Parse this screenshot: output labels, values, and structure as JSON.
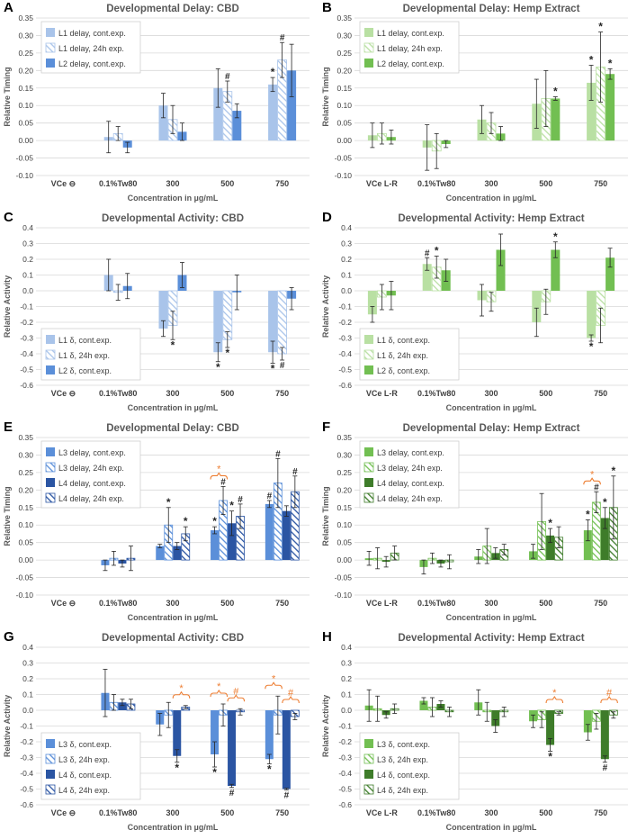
{
  "colors": {
    "cbd_a": "#a9c4ea",
    "cbd_b": "#5b8fd9",
    "cbd_c": "#2b55a3",
    "hemp_a": "#b9e0a3",
    "hemp_b": "#72bf52",
    "hemp_c": "#3e7c2a",
    "sig": "#ed7d31",
    "grid": "#d9d9d9",
    "text": "#595959",
    "title": "#595959"
  },
  "chart_data": [
    {
      "panel": "A",
      "type": "bar",
      "title": "Developmental Delay: CBD",
      "xlabel": "Concentration in µg/mL",
      "ylabel": "Relative Timing",
      "ylim": [
        -0.1,
        0.35
      ],
      "yticks": [
        -0.1,
        -0.05,
        0,
        0.05,
        0.1,
        0.15,
        0.2,
        0.25,
        0.3,
        0.35
      ],
      "categories": [
        "VCe ⊖",
        "0.1%Tw80",
        "300",
        "500",
        "750"
      ],
      "legend_position": "top-left",
      "series": [
        {
          "name": "L1 delay, cont.exp.",
          "color": "#a9c4ea",
          "hatch": false,
          "values": [
            null,
            0.01,
            0.1,
            0.15,
            0.16
          ],
          "err": [
            null,
            0.045,
            0.035,
            0.055,
            0.02
          ],
          "marks": [
            null,
            null,
            null,
            null,
            "*"
          ]
        },
        {
          "name": "L1 delay, 24h exp.",
          "color": "#a9c4ea",
          "hatch": true,
          "values": [
            null,
            0.02,
            0.06,
            0.14,
            0.23
          ],
          "err": [
            null,
            0.02,
            0.04,
            0.03,
            0.05
          ],
          "marks": [
            null,
            null,
            null,
            "#",
            "#"
          ]
        },
        {
          "name": "L2 delay, cont.exp.",
          "color": "#5b8fd9",
          "hatch": false,
          "values": [
            null,
            -0.02,
            0.025,
            0.085,
            0.2
          ],
          "err": [
            null,
            0.015,
            0.025,
            0.02,
            0.075
          ],
          "marks": [
            null,
            null,
            null,
            null,
            null
          ]
        }
      ],
      "brackets": []
    },
    {
      "panel": "B",
      "type": "bar",
      "title": "Developmental Delay: Hemp Extract",
      "xlabel": "Concentration in µg/mL",
      "ylabel": "Relative Timing",
      "ylim": [
        -0.1,
        0.35
      ],
      "yticks": [
        -0.1,
        -0.05,
        0,
        0.05,
        0.1,
        0.15,
        0.2,
        0.25,
        0.3,
        0.35
      ],
      "categories": [
        "VCe L-R",
        "0.1%Tw80",
        "300",
        "500",
        "750"
      ],
      "legend_position": "top-left",
      "series": [
        {
          "name": "L1 delay, cont.exp.",
          "color": "#b9e0a3",
          "hatch": false,
          "values": [
            0.015,
            -0.02,
            0.06,
            0.105,
            0.165
          ],
          "err": [
            0.035,
            0.065,
            0.04,
            0.07,
            0.05
          ],
          "marks": [
            null,
            null,
            null,
            null,
            "*"
          ]
        },
        {
          "name": "L1 delay, 24h exp.",
          "color": "#b9e0a3",
          "hatch": true,
          "values": [
            0.02,
            -0.03,
            0.05,
            0.12,
            0.21
          ],
          "err": [
            0.03,
            0.05,
            0.03,
            0.08,
            0.1
          ],
          "marks": [
            null,
            null,
            null,
            null,
            "*"
          ]
        },
        {
          "name": "L2 delay, cont.exp.",
          "color": "#72bf52",
          "hatch": false,
          "values": [
            0.01,
            -0.01,
            0.02,
            0.12,
            0.19
          ],
          "err": [
            0.02,
            0.01,
            0.02,
            0.005,
            0.015
          ],
          "marks": [
            null,
            null,
            null,
            "*",
            "*"
          ]
        }
      ],
      "brackets": []
    },
    {
      "panel": "C",
      "type": "bar",
      "title": "Developmental Activity: CBD",
      "xlabel": "Concentration in µg/mL",
      "ylabel": "Relative Activity",
      "ylim": [
        -0.6,
        0.4
      ],
      "yticks": [
        -0.6,
        -0.5,
        -0.4,
        -0.3,
        -0.2,
        -0.1,
        0,
        0.1,
        0.2,
        0.3,
        0.4
      ],
      "categories": [
        "VCe ⊖",
        "0.1%Tw80",
        "300",
        "500",
        "750"
      ],
      "legend_position": "bottom-left",
      "series": [
        {
          "name": "L1 δ, cont.exp.",
          "color": "#a9c4ea",
          "hatch": false,
          "values": [
            null,
            0.1,
            -0.24,
            -0.39,
            -0.39
          ],
          "err": [
            null,
            0.1,
            0.05,
            0.06,
            0.07
          ],
          "marks": [
            null,
            null,
            null,
            "*",
            "*"
          ]
        },
        {
          "name": "L1 δ, 24h exp.",
          "color": "#a9c4ea",
          "hatch": true,
          "values": [
            null,
            -0.01,
            -0.22,
            -0.31,
            -0.4
          ],
          "err": [
            null,
            0.05,
            0.09,
            0.05,
            0.04
          ],
          "marks": [
            null,
            null,
            "*",
            "*",
            "#"
          ]
        },
        {
          "name": "L2 δ, cont.exp.",
          "color": "#5b8fd9",
          "hatch": false,
          "values": [
            null,
            0.03,
            0.1,
            -0.01,
            -0.05
          ],
          "err": [
            null,
            0.08,
            0.08,
            0.11,
            0.07
          ],
          "marks": [
            null,
            null,
            null,
            null,
            null
          ]
        }
      ],
      "brackets": []
    },
    {
      "panel": "D",
      "type": "bar",
      "title": "Developmental Activity: Hemp Extract",
      "xlabel": "Concentration in µg/mL",
      "ylabel": "Relative Activity",
      "ylim": [
        -0.6,
        0.4
      ],
      "yticks": [
        -0.6,
        -0.5,
        -0.4,
        -0.3,
        -0.2,
        -0.1,
        0,
        0.1,
        0.2,
        0.3,
        0.4
      ],
      "categories": [
        "VCe L-R",
        "0.1%Tw80",
        "300",
        "500",
        "750"
      ],
      "legend_position": "bottom-left",
      "series": [
        {
          "name": "L1 δ, cont.exp.",
          "color": "#b9e0a3",
          "hatch": false,
          "values": [
            -0.15,
            0.17,
            -0.06,
            -0.2,
            -0.3
          ],
          "err": [
            0.05,
            0.04,
            0.1,
            0.09,
            0.02
          ],
          "marks": [
            null,
            "#",
            null,
            null,
            "*"
          ]
        },
        {
          "name": "L1 δ, 24h exp.",
          "color": "#b9e0a3",
          "hatch": true,
          "values": [
            -0.04,
            0.15,
            -0.07,
            -0.07,
            -0.22
          ],
          "err": [
            0.08,
            0.07,
            0.06,
            0.08,
            0.11
          ],
          "marks": [
            null,
            "*",
            null,
            null,
            null
          ]
        },
        {
          "name": "L2 δ, cont.exp.",
          "color": "#72bf52",
          "hatch": false,
          "values": [
            -0.03,
            0.13,
            0.26,
            0.26,
            0.21
          ],
          "err": [
            0.09,
            0.07,
            0.1,
            0.05,
            0.06
          ],
          "marks": [
            null,
            null,
            null,
            "*",
            null
          ]
        }
      ],
      "brackets": []
    },
    {
      "panel": "E",
      "type": "bar",
      "title": "Developmental Delay: CBD",
      "xlabel": "Concentration in µg/mL",
      "ylabel": "Relative Timing",
      "ylim": [
        -0.1,
        0.35
      ],
      "yticks": [
        -0.1,
        -0.05,
        0,
        0.05,
        0.1,
        0.15,
        0.2,
        0.25,
        0.3,
        0.35
      ],
      "categories": [
        "VCe ⊖",
        "0.1%Tw80",
        "300",
        "500",
        "750"
      ],
      "legend_position": "top-left",
      "series": [
        {
          "name": "L3 delay, cont.exp.",
          "color": "#5b8fd9",
          "hatch": false,
          "values": [
            null,
            -0.015,
            0.04,
            0.085,
            0.16
          ],
          "err": [
            null,
            0.015,
            0.005,
            0.01,
            0.01
          ],
          "marks": [
            null,
            null,
            null,
            "*",
            "#"
          ]
        },
        {
          "name": "L3 delay, 24h exp.",
          "color": "#5b8fd9",
          "hatch": true,
          "values": [
            null,
            0.005,
            0.1,
            0.17,
            0.22
          ],
          "err": [
            null,
            0.02,
            0.05,
            0.04,
            0.07
          ],
          "marks": [
            null,
            null,
            "*",
            "#",
            "#"
          ]
        },
        {
          "name": "L4 delay, cont.exp.",
          "color": "#2b55a3",
          "hatch": false,
          "values": [
            null,
            -0.01,
            0.04,
            0.105,
            0.14
          ],
          "err": [
            null,
            0.01,
            0.01,
            0.035,
            0.015
          ],
          "marks": [
            null,
            null,
            null,
            "*",
            null
          ]
        },
        {
          "name": "L4 delay, 24h exp.",
          "color": "#2b55a3",
          "hatch": true,
          "values": [
            null,
            0.005,
            0.075,
            0.125,
            0.195
          ],
          "err": [
            null,
            0.035,
            0.02,
            0.035,
            0.045
          ],
          "marks": [
            null,
            null,
            "*",
            "#",
            "#"
          ]
        }
      ],
      "brackets": [
        {
          "category": 3,
          "from": 0,
          "to": 1,
          "label": "*"
        }
      ]
    },
    {
      "panel": "F",
      "type": "bar",
      "title": "Developmental Delay: Hemp Extract",
      "xlabel": "Concentration in µg/mL",
      "ylabel": "Relative Timing",
      "ylim": [
        -0.1,
        0.35
      ],
      "yticks": [
        -0.1,
        -0.05,
        0,
        0.05,
        0.1,
        0.15,
        0.2,
        0.25,
        0.3,
        0.35
      ],
      "categories": [
        "VCe L-R",
        "0.1%Tw80",
        "300",
        "500",
        "750"
      ],
      "legend_position": "top-left",
      "series": [
        {
          "name": "L3 delay, cont.exp.",
          "color": "#72bf52",
          "hatch": false,
          "values": [
            0.005,
            -0.02,
            0.01,
            0.025,
            0.085
          ],
          "err": [
            0.02,
            0.02,
            0.02,
            0.02,
            0.03
          ],
          "marks": [
            null,
            null,
            null,
            null,
            "*"
          ]
        },
        {
          "name": "L3 delay, 24h exp.",
          "color": "#72bf52",
          "hatch": true,
          "values": [
            0.005,
            0.005,
            0.04,
            0.11,
            0.165
          ],
          "err": [
            0.03,
            0.015,
            0.05,
            0.08,
            0.03
          ],
          "marks": [
            null,
            null,
            null,
            null,
            "#"
          ]
        },
        {
          "name": "L4 delay, cont.exp.",
          "color": "#3e7c2a",
          "hatch": false,
          "values": [
            -0.005,
            -0.01,
            0.02,
            0.07,
            0.12
          ],
          "err": [
            0.015,
            0.01,
            0.015,
            0.02,
            0.03
          ],
          "marks": [
            null,
            null,
            null,
            "*",
            "*"
          ]
        },
        {
          "name": "L4 delay, 24h exp.",
          "color": "#3e7c2a",
          "hatch": true,
          "values": [
            0.02,
            -0.005,
            0.03,
            0.065,
            0.15
          ],
          "err": [
            0.02,
            0.02,
            0.015,
            0.03,
            0.09
          ],
          "marks": [
            null,
            null,
            null,
            null,
            "*"
          ]
        }
      ],
      "brackets": [
        {
          "category": 4,
          "from": 0,
          "to": 1,
          "label": "*"
        }
      ]
    },
    {
      "panel": "G",
      "type": "bar",
      "title": "Developmental Activity: CBD",
      "xlabel": "Concentration in µg/mL",
      "ylabel": "Relative Activity",
      "ylim": [
        -0.6,
        0.4
      ],
      "yticks": [
        -0.6,
        -0.5,
        -0.4,
        -0.3,
        -0.2,
        -0.1,
        0,
        0.1,
        0.2,
        0.3,
        0.4
      ],
      "categories": [
        "VCe ⊖",
        "0.1%Tw80",
        "300",
        "500",
        "750"
      ],
      "legend_position": "bottom-left",
      "series": [
        {
          "name": "L3 δ, cont.exp.",
          "color": "#5b8fd9",
          "hatch": false,
          "values": [
            null,
            0.11,
            -0.09,
            -0.28,
            -0.31
          ],
          "err": [
            null,
            0.15,
            0.07,
            0.08,
            0.03
          ],
          "marks": [
            null,
            null,
            null,
            "*",
            "*"
          ]
        },
        {
          "name": "L3 δ, 24h exp.",
          "color": "#5b8fd9",
          "hatch": true,
          "values": [
            null,
            0.05,
            -0.03,
            -0.03,
            -0.03
          ],
          "err": [
            null,
            0.05,
            0.08,
            0.07,
            0.12
          ],
          "marks": [
            null,
            null,
            null,
            null,
            null
          ]
        },
        {
          "name": "L4 δ, cont.exp.",
          "color": "#2b55a3",
          "hatch": false,
          "values": [
            null,
            0.05,
            -0.29,
            -0.48,
            -0.5
          ],
          "err": [
            null,
            0.02,
            0.04,
            0.01,
            0.005
          ],
          "marks": [
            null,
            null,
            "*",
            "#",
            "#"
          ]
        },
        {
          "name": "L4 δ, 24h exp.",
          "color": "#2b55a3",
          "hatch": true,
          "values": [
            null,
            0.04,
            0.02,
            -0.01,
            -0.04
          ],
          "err": [
            null,
            0.03,
            0.01,
            0.02,
            0.02
          ],
          "marks": [
            null,
            null,
            null,
            null,
            null
          ]
        }
      ],
      "brackets": [
        {
          "category": 2,
          "from": 2,
          "to": 3,
          "label": "*"
        },
        {
          "category": 3,
          "from": 0,
          "to": 1,
          "label": "*"
        },
        {
          "category": 3,
          "from": 2,
          "to": 3,
          "label": "#"
        },
        {
          "category": 4,
          "from": 0,
          "to": 1,
          "label": "*"
        },
        {
          "category": 4,
          "from": 2,
          "to": 3,
          "label": "#"
        }
      ]
    },
    {
      "panel": "H",
      "type": "bar",
      "title": "Developmental Activity: Hemp Extract",
      "xlabel": "Concentration in µg/mL",
      "ylabel": "Relative Activity",
      "ylim": [
        -0.6,
        0.4
      ],
      "yticks": [
        -0.6,
        -0.5,
        -0.4,
        -0.3,
        -0.2,
        -0.1,
        0,
        0.1,
        0.2,
        0.3,
        0.4
      ],
      "categories": [
        "VCe L-R",
        "0.1%Tw80",
        "300",
        "500",
        "750"
      ],
      "legend_position": "bottom-left",
      "series": [
        {
          "name": "L3 δ, cont.exp.",
          "color": "#72bf52",
          "hatch": false,
          "values": [
            0.03,
            0.06,
            0.05,
            -0.07,
            -0.14
          ],
          "err": [
            0.1,
            0.02,
            0.08,
            0.04,
            0.05
          ],
          "marks": [
            null,
            null,
            null,
            null,
            null
          ]
        },
        {
          "name": "L3 δ, 24h exp.",
          "color": "#72bf52",
          "hatch": true,
          "values": [
            0.01,
            0.02,
            -0.01,
            -0.06,
            -0.07
          ],
          "err": [
            0.08,
            0.06,
            0.06,
            0.05,
            0.05
          ],
          "marks": [
            null,
            null,
            null,
            null,
            null
          ]
        },
        {
          "name": "L4 δ, cont.exp.",
          "color": "#3e7c2a",
          "hatch": false,
          "values": [
            -0.03,
            0.04,
            -0.1,
            -0.22,
            -0.31
          ],
          "err": [
            0.02,
            0.02,
            0.04,
            0.04,
            0.02
          ],
          "marks": [
            null,
            null,
            null,
            "*",
            "#"
          ]
        },
        {
          "name": "L4 δ, 24h exp.",
          "color": "#3e7c2a",
          "hatch": true,
          "values": [
            0.01,
            -0.01,
            -0.01,
            -0.02,
            -0.03
          ],
          "err": [
            0.03,
            0.03,
            0.03,
            0.01,
            0.02
          ],
          "marks": [
            null,
            null,
            null,
            null,
            null
          ]
        }
      ],
      "brackets": [
        {
          "category": 3,
          "from": 2,
          "to": 3,
          "label": "*"
        },
        {
          "category": 4,
          "from": 2,
          "to": 3,
          "label": "#"
        }
      ]
    }
  ]
}
